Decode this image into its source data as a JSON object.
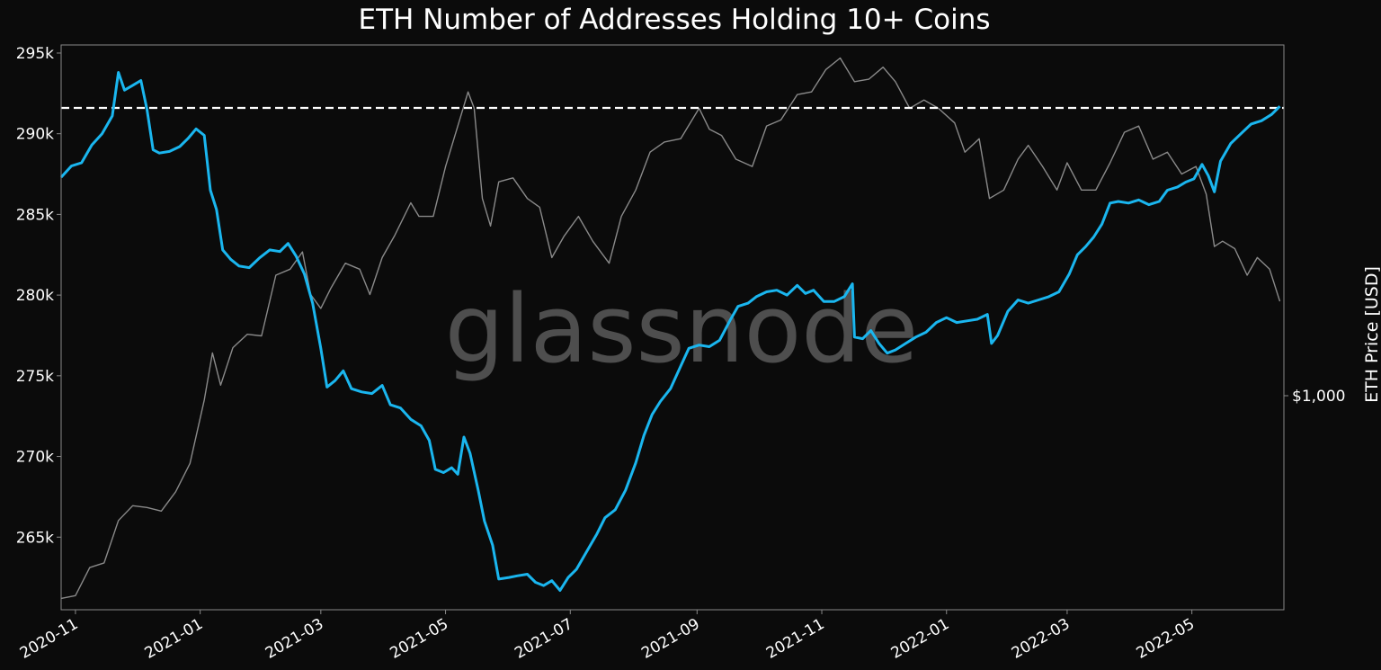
{
  "chart_data": {
    "type": "line",
    "title": "ETH Number of Addresses Holding 10+ Coins",
    "watermark": "glassnode",
    "xlabel": "",
    "ylabel": "",
    "y2label": "ETH Price [USD]",
    "x_ticks": [
      "2020-11",
      "2021-01",
      "2021-03",
      "2021-05",
      "2021-07",
      "2021-09",
      "2021-11",
      "2022-01",
      "2022-03",
      "2022-05"
    ],
    "x_range": [
      "2020-10-25",
      "2022-06-15"
    ],
    "y_ticks": [
      {
        "value": 295000,
        "label": "295k"
      },
      {
        "value": 290000,
        "label": "290k"
      },
      {
        "value": 285000,
        "label": "285k"
      },
      {
        "value": 280000,
        "label": "280k"
      },
      {
        "value": 275000,
        "label": "275k"
      },
      {
        "value": 270000,
        "label": "270k"
      },
      {
        "value": 265000,
        "label": "265k"
      }
    ],
    "ylim": [
      260500,
      295500
    ],
    "y2_scale": "log",
    "y2_ticks": [
      {
        "value": 1000,
        "label": "$1,000"
      }
    ],
    "y2lim": [
      370,
      5100
    ],
    "grid": false,
    "colors": {
      "background": "#0b0b0b",
      "addresses": "#1ab6ef",
      "price": "#8a8a8a",
      "reference_line": "#ffffff",
      "axis": "#888888",
      "text": "#ffffff",
      "watermark": "#5a5a5a"
    },
    "reference_line": {
      "value": 291600,
      "style": "dashed"
    },
    "series": [
      {
        "name": "",
        "axis": "left",
        "color": "#1ab6ef",
        "points": [
          [
            "2020-10-25",
            287300
          ],
          [
            "2020-10-30",
            288000
          ],
          [
            "2020-11-04",
            288200
          ],
          [
            "2020-11-09",
            289300
          ],
          [
            "2020-11-14",
            290000
          ],
          [
            "2020-11-19",
            291100
          ],
          [
            "2020-11-22",
            293800
          ],
          [
            "2020-11-25",
            292700
          ],
          [
            "2020-11-29",
            293000
          ],
          [
            "2020-12-03",
            293300
          ],
          [
            "2020-12-06",
            291500
          ],
          [
            "2020-12-09",
            289000
          ],
          [
            "2020-12-12",
            288800
          ],
          [
            "2020-12-17",
            288900
          ],
          [
            "2020-12-22",
            289200
          ],
          [
            "2020-12-26",
            289700
          ],
          [
            "2020-12-30",
            290300
          ],
          [
            "2021-01-03",
            289900
          ],
          [
            "2021-01-06",
            286500
          ],
          [
            "2021-01-09",
            285300
          ],
          [
            "2021-01-12",
            282800
          ],
          [
            "2021-01-16",
            282200
          ],
          [
            "2021-01-20",
            281800
          ],
          [
            "2021-01-25",
            281700
          ],
          [
            "2021-01-30",
            282300
          ],
          [
            "2021-02-04",
            282800
          ],
          [
            "2021-02-09",
            282700
          ],
          [
            "2021-02-13",
            283200
          ],
          [
            "2021-02-17",
            282400
          ],
          [
            "2021-02-21",
            281300
          ],
          [
            "2021-02-25",
            279500
          ],
          [
            "2021-03-01",
            276700
          ],
          [
            "2021-03-04",
            274300
          ],
          [
            "2021-03-08",
            274700
          ],
          [
            "2021-03-12",
            275300
          ],
          [
            "2021-03-16",
            274200
          ],
          [
            "2021-03-21",
            274000
          ],
          [
            "2021-03-26",
            273900
          ],
          [
            "2021-03-31",
            274400
          ],
          [
            "2021-04-04",
            273200
          ],
          [
            "2021-04-09",
            273000
          ],
          [
            "2021-04-14",
            272300
          ],
          [
            "2021-04-19",
            271900
          ],
          [
            "2021-04-23",
            271000
          ],
          [
            "2021-04-26",
            269200
          ],
          [
            "2021-04-30",
            269000
          ],
          [
            "2021-05-04",
            269300
          ],
          [
            "2021-05-07",
            268900
          ],
          [
            "2021-05-10",
            271200
          ],
          [
            "2021-05-13",
            270200
          ],
          [
            "2021-05-17",
            267900
          ],
          [
            "2021-05-20",
            266000
          ],
          [
            "2021-05-24",
            264500
          ],
          [
            "2021-05-27",
            262400
          ],
          [
            "2021-06-01",
            262500
          ],
          [
            "2021-06-05",
            262600
          ],
          [
            "2021-06-10",
            262700
          ],
          [
            "2021-06-14",
            262200
          ],
          [
            "2021-06-18",
            262000
          ],
          [
            "2021-06-22",
            262300
          ],
          [
            "2021-06-26",
            261700
          ],
          [
            "2021-06-30",
            262500
          ],
          [
            "2021-07-04",
            263000
          ],
          [
            "2021-07-09",
            264100
          ],
          [
            "2021-07-14",
            265200
          ],
          [
            "2021-07-18",
            266200
          ],
          [
            "2021-07-23",
            266700
          ],
          [
            "2021-07-28",
            267900
          ],
          [
            "2021-08-02",
            269600
          ],
          [
            "2021-08-06",
            271300
          ],
          [
            "2021-08-10",
            272600
          ],
          [
            "2021-08-14",
            273400
          ],
          [
            "2021-08-19",
            274200
          ],
          [
            "2021-08-24",
            275600
          ],
          [
            "2021-08-28",
            276700
          ],
          [
            "2021-09-02",
            276900
          ],
          [
            "2021-09-07",
            276800
          ],
          [
            "2021-09-12",
            277200
          ],
          [
            "2021-09-17",
            278400
          ],
          [
            "2021-09-21",
            279300
          ],
          [
            "2021-09-26",
            279500
          ],
          [
            "2021-09-30",
            279900
          ],
          [
            "2021-10-05",
            280200
          ],
          [
            "2021-10-10",
            280300
          ],
          [
            "2021-10-15",
            280000
          ],
          [
            "2021-10-20",
            280600
          ],
          [
            "2021-10-24",
            280100
          ],
          [
            "2021-10-28",
            280300
          ],
          [
            "2021-11-02",
            279600
          ],
          [
            "2021-11-07",
            279600
          ],
          [
            "2021-11-12",
            279900
          ],
          [
            "2021-11-16",
            280700
          ],
          [
            "2021-11-17",
            277400
          ],
          [
            "2021-11-21",
            277300
          ],
          [
            "2021-11-25",
            277800
          ],
          [
            "2021-11-29",
            277000
          ],
          [
            "2021-12-03",
            276400
          ],
          [
            "2021-12-07",
            276600
          ],
          [
            "2021-12-12",
            277000
          ],
          [
            "2021-12-17",
            277400
          ],
          [
            "2021-12-22",
            277700
          ],
          [
            "2021-12-27",
            278300
          ],
          [
            "2022-01-01",
            278600
          ],
          [
            "2022-01-06",
            278300
          ],
          [
            "2022-01-11",
            278400
          ],
          [
            "2022-01-16",
            278500
          ],
          [
            "2022-01-21",
            278800
          ],
          [
            "2022-01-23",
            277000
          ],
          [
            "2022-01-26",
            277500
          ],
          [
            "2022-01-31",
            279000
          ],
          [
            "2022-02-05",
            279700
          ],
          [
            "2022-02-10",
            279500
          ],
          [
            "2022-02-15",
            279700
          ],
          [
            "2022-02-20",
            279900
          ],
          [
            "2022-02-25",
            280200
          ],
          [
            "2022-03-02",
            281300
          ],
          [
            "2022-03-06",
            282500
          ],
          [
            "2022-03-10",
            283000
          ],
          [
            "2022-03-14",
            283600
          ],
          [
            "2022-03-18",
            284400
          ],
          [
            "2022-03-22",
            285700
          ],
          [
            "2022-03-26",
            285800
          ],
          [
            "2022-03-31",
            285700
          ],
          [
            "2022-04-05",
            285900
          ],
          [
            "2022-04-10",
            285600
          ],
          [
            "2022-04-15",
            285800
          ],
          [
            "2022-04-19",
            286500
          ],
          [
            "2022-04-24",
            286700
          ],
          [
            "2022-04-28",
            287000
          ],
          [
            "2022-05-02",
            287200
          ],
          [
            "2022-05-06",
            288100
          ],
          [
            "2022-05-09",
            287400
          ],
          [
            "2022-05-12",
            286400
          ],
          [
            "2022-05-15",
            288300
          ],
          [
            "2022-05-20",
            289400
          ],
          [
            "2022-05-25",
            290000
          ],
          [
            "2022-05-30",
            290600
          ],
          [
            "2022-06-04",
            290800
          ],
          [
            "2022-06-09",
            291200
          ],
          [
            "2022-06-13",
            291700
          ]
        ]
      },
      {
        "name": "ETH Price [USD]",
        "axis": "right",
        "color": "#8a8a8a",
        "points": [
          [
            "2020-10-25",
            390
          ],
          [
            "2020-11-01",
            395
          ],
          [
            "2020-11-08",
            450
          ],
          [
            "2020-11-15",
            460
          ],
          [
            "2020-11-22",
            560
          ],
          [
            "2020-11-29",
            600
          ],
          [
            "2020-12-06",
            595
          ],
          [
            "2020-12-13",
            585
          ],
          [
            "2020-12-20",
            640
          ],
          [
            "2020-12-27",
            730
          ],
          [
            "2021-01-03",
            980
          ],
          [
            "2021-01-07",
            1220
          ],
          [
            "2021-01-11",
            1050
          ],
          [
            "2021-01-17",
            1250
          ],
          [
            "2021-01-24",
            1330
          ],
          [
            "2021-01-31",
            1320
          ],
          [
            "2021-02-07",
            1750
          ],
          [
            "2021-02-14",
            1800
          ],
          [
            "2021-02-20",
            1950
          ],
          [
            "2021-02-24",
            1600
          ],
          [
            "2021-03-01",
            1500
          ],
          [
            "2021-03-06",
            1650
          ],
          [
            "2021-03-13",
            1850
          ],
          [
            "2021-03-20",
            1800
          ],
          [
            "2021-03-25",
            1600
          ],
          [
            "2021-03-31",
            1900
          ],
          [
            "2021-04-06",
            2100
          ],
          [
            "2021-04-14",
            2450
          ],
          [
            "2021-04-18",
            2300
          ],
          [
            "2021-04-25",
            2300
          ],
          [
            "2021-05-01",
            2900
          ],
          [
            "2021-05-07",
            3500
          ],
          [
            "2021-05-12",
            4100
          ],
          [
            "2021-05-15",
            3800
          ],
          [
            "2021-05-19",
            2500
          ],
          [
            "2021-05-23",
            2200
          ],
          [
            "2021-05-27",
            2700
          ],
          [
            "2021-06-03",
            2750
          ],
          [
            "2021-06-10",
            2500
          ],
          [
            "2021-06-16",
            2400
          ],
          [
            "2021-06-22",
            1900
          ],
          [
            "2021-06-28",
            2100
          ],
          [
            "2021-07-05",
            2300
          ],
          [
            "2021-07-12",
            2050
          ],
          [
            "2021-07-20",
            1850
          ],
          [
            "2021-07-26",
            2300
          ],
          [
            "2021-08-02",
            2600
          ],
          [
            "2021-08-09",
            3100
          ],
          [
            "2021-08-16",
            3250
          ],
          [
            "2021-08-24",
            3300
          ],
          [
            "2021-09-02",
            3800
          ],
          [
            "2021-09-07",
            3450
          ],
          [
            "2021-09-13",
            3350
          ],
          [
            "2021-09-20",
            3000
          ],
          [
            "2021-09-28",
            2900
          ],
          [
            "2021-10-05",
            3500
          ],
          [
            "2021-10-12",
            3600
          ],
          [
            "2021-10-20",
            4050
          ],
          [
            "2021-10-27",
            4100
          ],
          [
            "2021-11-03",
            4550
          ],
          [
            "2021-11-10",
            4800
          ],
          [
            "2021-11-17",
            4300
          ],
          [
            "2021-11-24",
            4350
          ],
          [
            "2021-12-01",
            4600
          ],
          [
            "2021-12-07",
            4300
          ],
          [
            "2021-12-14",
            3800
          ],
          [
            "2021-12-21",
            3950
          ],
          [
            "2021-12-28",
            3800
          ],
          [
            "2022-01-05",
            3550
          ],
          [
            "2022-01-10",
            3100
          ],
          [
            "2022-01-17",
            3300
          ],
          [
            "2022-01-22",
            2500
          ],
          [
            "2022-01-29",
            2600
          ],
          [
            "2022-02-05",
            3000
          ],
          [
            "2022-02-10",
            3200
          ],
          [
            "2022-02-17",
            2900
          ],
          [
            "2022-02-24",
            2600
          ],
          [
            "2022-03-01",
            2950
          ],
          [
            "2022-03-08",
            2600
          ],
          [
            "2022-03-15",
            2600
          ],
          [
            "2022-03-22",
            2950
          ],
          [
            "2022-03-29",
            3400
          ],
          [
            "2022-04-05",
            3500
          ],
          [
            "2022-04-12",
            3000
          ],
          [
            "2022-04-19",
            3100
          ],
          [
            "2022-04-26",
            2800
          ],
          [
            "2022-05-03",
            2900
          ],
          [
            "2022-05-08",
            2550
          ],
          [
            "2022-05-12",
            2000
          ],
          [
            "2022-05-16",
            2050
          ],
          [
            "2022-05-22",
            1980
          ],
          [
            "2022-05-28",
            1750
          ],
          [
            "2022-06-02",
            1900
          ],
          [
            "2022-06-08",
            1800
          ],
          [
            "2022-06-13",
            1550
          ]
        ]
      }
    ]
  }
}
